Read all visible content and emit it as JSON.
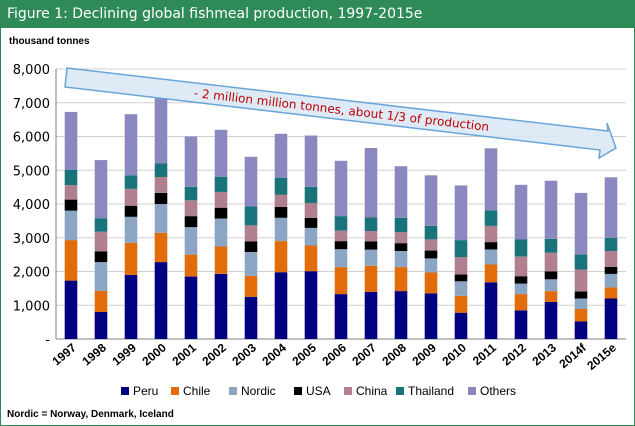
{
  "title": "Figure 1: Declining global fishmeal production, 1997-2015e",
  "footnote": "Nordic = Norway, Denmark, Iceland",
  "chart_data": {
    "type": "bar",
    "stacked": true,
    "ylabel": "thousand tonnes",
    "ylim": [
      0,
      8000
    ],
    "yticks": [
      "-",
      "1,000",
      "2,000",
      "3,000",
      "4,000",
      "5,000",
      "6,000",
      "7,000",
      "8,000"
    ],
    "grid": true,
    "legend_position": "bottom",
    "categories": [
      "1997",
      "1998",
      "1999",
      "2000",
      "2001",
      "2002",
      "2003",
      "2004",
      "2005",
      "2006",
      "2007",
      "2008",
      "2009",
      "2010",
      "2011",
      "2012",
      "2013",
      "2014f",
      "2015e"
    ],
    "series": [
      {
        "name": "Peru",
        "color": "#000080",
        "values": [
          1730,
          800,
          1900,
          2280,
          1850,
          1930,
          1250,
          1980,
          2010,
          1330,
          1400,
          1420,
          1350,
          780,
          1680,
          850,
          1100,
          520,
          1200
        ]
      },
      {
        "name": "Chile",
        "color": "#e36c0a",
        "values": [
          1200,
          630,
          950,
          870,
          650,
          810,
          620,
          920,
          760,
          800,
          770,
          710,
          620,
          500,
          530,
          480,
          320,
          370,
          330
        ]
      },
      {
        "name": "Nordic",
        "color": "#8ba6c4",
        "values": [
          870,
          850,
          770,
          850,
          810,
          830,
          710,
          690,
          520,
          530,
          480,
          480,
          420,
          430,
          440,
          310,
          350,
          310,
          400
        ]
      },
      {
        "name": "USA",
        "color": "#000000",
        "values": [
          330,
          320,
          330,
          330,
          330,
          320,
          310,
          320,
          300,
          240,
          240,
          230,
          230,
          200,
          220,
          220,
          230,
          210,
          210
        ]
      },
      {
        "name": "China",
        "color": "#b08090",
        "values": [
          430,
          580,
          500,
          470,
          470,
          470,
          480,
          370,
          440,
          310,
          310,
          330,
          330,
          520,
          480,
          580,
          560,
          650,
          470
        ]
      },
      {
        "name": "Thailand",
        "color": "#18737a",
        "values": [
          450,
          400,
          400,
          400,
          400,
          450,
          560,
          500,
          480,
          430,
          400,
          420,
          400,
          500,
          460,
          510,
          410,
          450,
          390
        ]
      },
      {
        "name": "Others",
        "color": "#8b88bf",
        "values": [
          1720,
          1720,
          1810,
          1930,
          1490,
          1390,
          1470,
          1300,
          1520,
          1640,
          2060,
          1530,
          1500,
          1620,
          1840,
          1620,
          1720,
          1820,
          1790
        ]
      }
    ],
    "annotation": "- 2 million million tonnes, about 1/3 of production"
  }
}
